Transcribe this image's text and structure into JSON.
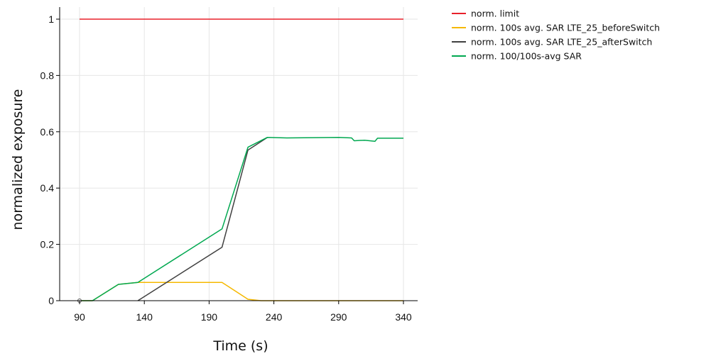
{
  "chart_data": {
    "type": "line",
    "title": "",
    "xlabel": "Time (s)",
    "ylabel": "normalized exposure",
    "xlim": [
      90,
      342
    ],
    "ylim": [
      0,
      1.05
    ],
    "x_ticks": [
      90,
      140,
      190,
      240,
      290,
      340
    ],
    "y_ticks": [
      0,
      0.2,
      0.4,
      0.6,
      0.8,
      1
    ],
    "x_tick_labels": [
      "90",
      "140",
      "190",
      "240",
      "290",
      "340"
    ],
    "y_tick_labels": [
      "0",
      "0.2",
      "0.4",
      "0.6",
      "0.8",
      "1"
    ],
    "grid": true,
    "legend_position": "top-right, outside plot",
    "series": [
      {
        "name": "norm. limit",
        "color": "#e8202a",
        "points": [
          [
            90,
            1
          ],
          [
            340,
            1
          ]
        ]
      },
      {
        "name": "norm. 100s avg. SAR LTE_25_beforeSwitch",
        "color": "#f5b800",
        "points": [
          [
            90,
            0
          ],
          [
            100,
            0
          ],
          [
            120,
            0.058
          ],
          [
            135,
            0.065
          ],
          [
            200,
            0.065
          ],
          [
            210,
            0.035
          ],
          [
            220,
            0.005
          ],
          [
            230,
            0
          ],
          [
            340,
            0
          ]
        ]
      },
      {
        "name": "norm. 100s avg. SAR LTE_25_afterSwitch",
        "color": "#404040",
        "points": [
          [
            135,
            0
          ],
          [
            200,
            0.19
          ],
          [
            220,
            0.535
          ],
          [
            235,
            0.58
          ]
        ]
      },
      {
        "name": "norm. 100/100s-avg SAR",
        "color": "#00a850",
        "points": [
          [
            90,
            0
          ],
          [
            100,
            0
          ],
          [
            120,
            0.058
          ],
          [
            135,
            0.065
          ],
          [
            200,
            0.255
          ],
          [
            220,
            0.545
          ],
          [
            235,
            0.58
          ],
          [
            250,
            0.578
          ],
          [
            270,
            0.579
          ],
          [
            290,
            0.58
          ],
          [
            300,
            0.578
          ],
          [
            302,
            0.568
          ],
          [
            310,
            0.57
          ],
          [
            318,
            0.566
          ],
          [
            320,
            0.577
          ],
          [
            340,
            0.577
          ]
        ]
      }
    ]
  }
}
